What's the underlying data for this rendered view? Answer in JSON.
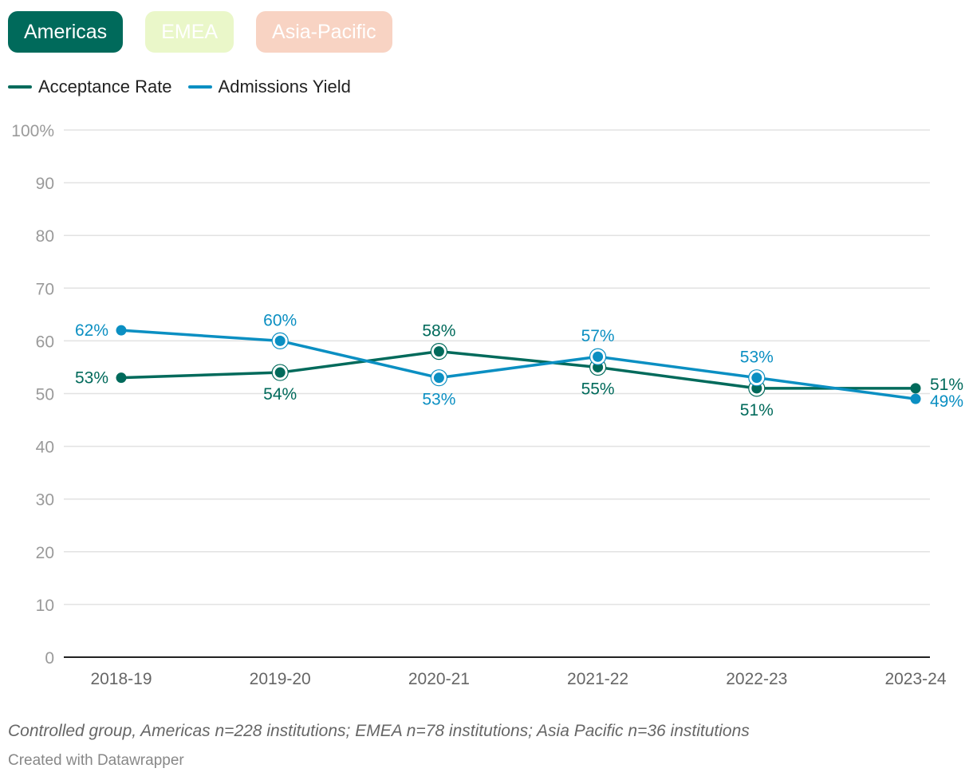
{
  "tabs": [
    {
      "label": "Americas",
      "color": "#006a5b",
      "active": true
    },
    {
      "label": "EMEA",
      "color": "#eaf7c9",
      "active": false
    },
    {
      "label": "Asia-Pacific",
      "color": "#f8d3c3",
      "active": false
    }
  ],
  "chart_data": {
    "type": "line",
    "categories": [
      "2018-19",
      "2019-20",
      "2020-21",
      "2021-22",
      "2022-23",
      "2023-24"
    ],
    "series": [
      {
        "name": "Acceptance Rate",
        "color": "#006a5b",
        "values": [
          53,
          54,
          58,
          55,
          51,
          51
        ],
        "labels": [
          "53%",
          "54%",
          "58%",
          "55%",
          "51%",
          "51%"
        ],
        "label_pos": [
          "left",
          "below",
          "above",
          "below",
          "below",
          "right"
        ]
      },
      {
        "name": "Admissions Yield",
        "color": "#0b8fc2",
        "values": [
          62,
          60,
          53,
          57,
          53,
          49
        ],
        "labels": [
          "62%",
          "60%",
          "53%",
          "57%",
          "53%",
          "49%"
        ],
        "label_pos": [
          "left",
          "above",
          "below",
          "above",
          "above",
          "right"
        ]
      }
    ],
    "ylim": [
      0,
      100
    ],
    "yticks": [
      0,
      10,
      20,
      30,
      40,
      50,
      60,
      70,
      80,
      90,
      100
    ],
    "ytick_labels": [
      "0",
      "10",
      "20",
      "30",
      "40",
      "50",
      "60",
      "70",
      "80",
      "90",
      "100%"
    ],
    "grid": true,
    "legend_position": "top-left"
  },
  "footer": {
    "note": "Controlled group, Americas n=228 institutions; EMEA n=78 institutions; Asia Pacific n=36 institutions",
    "credit": "Created with Datawrapper"
  }
}
